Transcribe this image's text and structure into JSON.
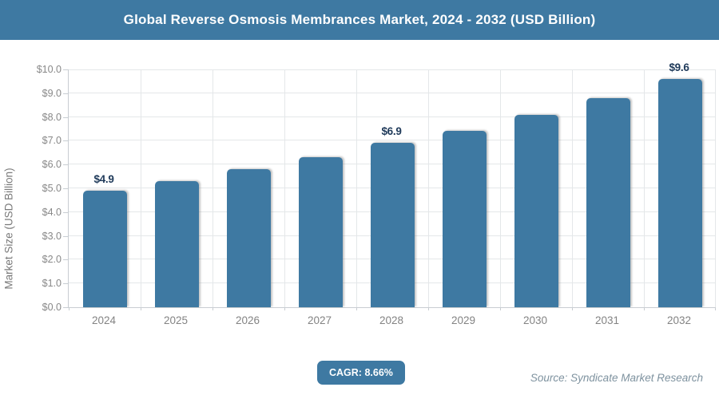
{
  "header": {
    "title": "Global Reverse Osmosis Membrances Market, 2024 - 2032 (USD Billion)"
  },
  "chart_data": {
    "type": "bar",
    "title": "Global Reverse Osmosis Membrances Market, 2024 - 2032 (USD Billion)",
    "categories": [
      "2024",
      "2025",
      "2026",
      "2027",
      "2028",
      "2029",
      "2030",
      "2031",
      "2032"
    ],
    "values": [
      4.9,
      5.3,
      5.8,
      6.3,
      6.9,
      7.4,
      8.1,
      8.8,
      9.6
    ],
    "bar_labels": [
      "$4.9",
      "",
      "",
      "",
      "$6.9",
      "",
      "",
      "",
      "$9.6"
    ],
    "xlabel": "",
    "ylabel": "Market Size (USD Billion)",
    "ylim": [
      0,
      10
    ],
    "ytick_labels": [
      "$0.0",
      "$1.0",
      "$2.0",
      "$3.0",
      "$4.0",
      "$5.0",
      "$6.0",
      "$7.0",
      "$8.0",
      "$9.0",
      "$10.0"
    ],
    "grid": true,
    "legend": "none",
    "bar_color": "#3E79A2"
  },
  "footer": {
    "cagr_label": "CAGR: 8.66%",
    "source": "Source: Syndicate Market Research"
  },
  "colors": {
    "accent": "#3E79A2",
    "data_label": "#1F3A5A",
    "axis_text": "#888888",
    "gridline": "#E4E7E9",
    "source_text": "#7E929F"
  }
}
